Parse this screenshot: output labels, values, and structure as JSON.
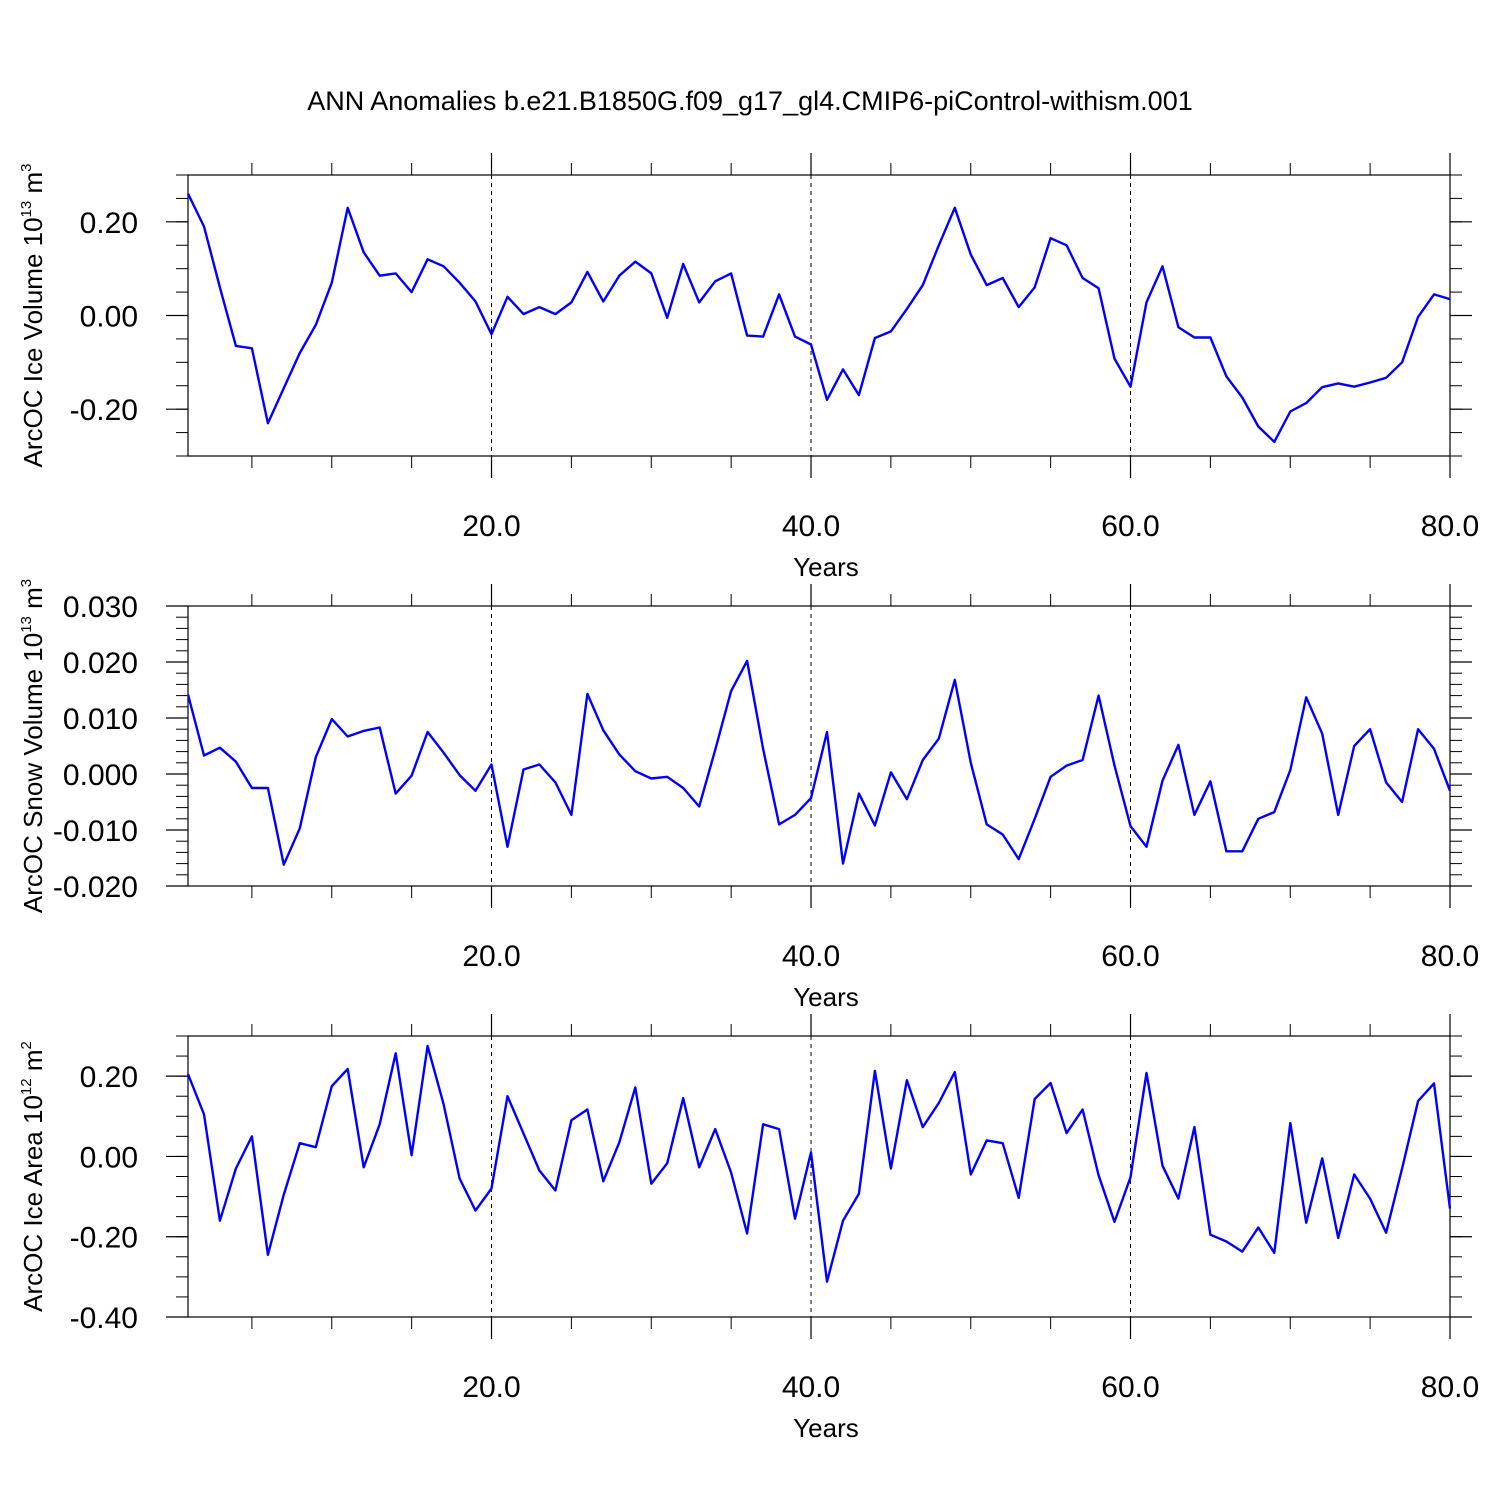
{
  "title": "ANN Anomalies b.e21.B1850G.f09_g17_gl4.CMIP6-piControl-withism.001",
  "colors": {
    "line": "#0000ff",
    "axis": "#000000",
    "grid": "#000000"
  },
  "chart_data": [
    {
      "type": "line",
      "xlabel": "Years",
      "ylabel": {
        "main": "ArcOC Ice Volume 10",
        "exp": "13",
        "unit": " m",
        "unit_exp": "3"
      },
      "xlim": [
        1,
        80
      ],
      "ylim": [
        -0.3,
        0.3
      ],
      "x_ticks": [
        20,
        40,
        60,
        80
      ],
      "x_tick_labels": [
        "20.0",
        "40.0",
        "60.0",
        "80.0"
      ],
      "y_ticks": [
        0.2,
        0.0,
        -0.2
      ],
      "y_tick_labels": [
        "0.20",
        "0.00",
        "-0.20"
      ],
      "y_minor_step": 0.05,
      "vgrid_x": [
        20,
        40,
        60
      ],
      "values": [
        0.26,
        0.19,
        0.06,
        -0.065,
        -0.07,
        -0.23,
        -0.155,
        -0.08,
        -0.02,
        0.07,
        0.23,
        0.135,
        0.085,
        0.09,
        0.05,
        0.12,
        0.105,
        0.07,
        0.03,
        -0.04,
        0.04,
        0.003,
        0.018,
        0.003,
        0.028,
        0.093,
        0.03,
        0.085,
        0.115,
        0.09,
        -0.005,
        0.11,
        0.028,
        0.073,
        0.09,
        -0.043,
        -0.045,
        0.045,
        -0.045,
        -0.062,
        -0.18,
        -0.115,
        -0.17,
        -0.048,
        -0.034,
        0.014,
        0.065,
        0.15,
        0.23,
        0.13,
        0.065,
        0.08,
        0.018,
        0.06,
        0.165,
        0.15,
        0.08,
        0.058,
        -0.092,
        -0.152,
        0.028,
        0.105,
        -0.025,
        -0.047,
        -0.047,
        -0.13,
        -0.175,
        -0.237,
        -0.27,
        -0.205,
        -0.187,
        -0.153,
        -0.145,
        -0.152,
        -0.143,
        -0.133,
        -0.1,
        -0.003,
        0.045,
        0.035
      ]
    },
    {
      "type": "line",
      "xlabel": "Years",
      "ylabel": {
        "main": "ArcOC Snow Volume 10",
        "exp": "13",
        "unit": " m",
        "unit_exp": "3"
      },
      "xlim": [
        1,
        80
      ],
      "ylim": [
        -0.02,
        0.03
      ],
      "x_ticks": [
        20,
        40,
        60,
        80
      ],
      "x_tick_labels": [
        "20.0",
        "40.0",
        "60.0",
        "80.0"
      ],
      "y_ticks": [
        0.03,
        0.02,
        0.01,
        0.0,
        -0.01,
        -0.02
      ],
      "y_tick_labels": [
        "0.030",
        "0.020",
        "0.010",
        "0.000",
        "-0.010",
        "-0.020"
      ],
      "y_minor_step": 0.002,
      "vgrid_x": [
        20,
        40,
        60
      ],
      "values": [
        0.0142,
        0.0033,
        0.0047,
        0.0022,
        -0.0025,
        -0.0025,
        -0.0162,
        -0.0097,
        0.003,
        0.0098,
        0.0067,
        0.0077,
        0.0083,
        -0.0035,
        -0.0003,
        0.0075,
        0.0038,
        -0.0002,
        -0.003,
        0.0017,
        -0.013,
        0.0008,
        0.0017,
        -0.0015,
        -0.0073,
        0.0143,
        0.0078,
        0.0035,
        0.0005,
        -0.0008,
        -0.0005,
        -0.0025,
        -0.0058,
        0.0043,
        0.0148,
        0.0202,
        0.0045,
        -0.009,
        -0.0073,
        -0.0043,
        0.0075,
        -0.016,
        -0.0035,
        -0.0092,
        0.0003,
        -0.0045,
        0.0025,
        0.0063,
        0.0168,
        0.002,
        -0.009,
        -0.0108,
        -0.0152,
        -0.008,
        -0.0005,
        0.0015,
        0.0025,
        0.014,
        0.0015,
        -0.0093,
        -0.013,
        -0.0012,
        0.0052,
        -0.0073,
        -0.0013,
        -0.0138,
        -0.0138,
        -0.008,
        -0.0068,
        0.0007,
        0.0137,
        0.0072,
        -0.0073,
        0.005,
        0.008,
        -0.0015,
        -0.005,
        0.008,
        0.0045,
        -0.003
      ]
    },
    {
      "type": "line",
      "xlabel": "Years",
      "ylabel": {
        "main": "ArcOC Ice Area 10",
        "exp": "12",
        "unit": " m",
        "unit_exp": "2"
      },
      "xlim": [
        1,
        80
      ],
      "ylim": [
        -0.4,
        0.3
      ],
      "x_ticks": [
        20,
        40,
        60,
        80
      ],
      "x_tick_labels": [
        "20.0",
        "40.0",
        "60.0",
        "80.0"
      ],
      "y_ticks": [
        0.2,
        0.0,
        -0.2,
        -0.4
      ],
      "y_tick_labels": [
        "0.20",
        "0.00",
        "-0.20",
        "-0.40"
      ],
      "y_minor_step": 0.05,
      "vgrid_x": [
        20,
        40,
        60
      ],
      "values": [
        0.205,
        0.105,
        -0.16,
        -0.03,
        0.05,
        -0.245,
        -0.095,
        0.033,
        0.023,
        0.175,
        0.218,
        -0.027,
        0.08,
        0.257,
        0.003,
        0.275,
        0.13,
        -0.055,
        -0.135,
        -0.08,
        0.15,
        0.057,
        -0.035,
        -0.085,
        0.09,
        0.117,
        -0.062,
        0.035,
        0.172,
        -0.068,
        -0.017,
        0.145,
        -0.027,
        0.068,
        -0.04,
        -0.192,
        0.08,
        0.068,
        -0.155,
        0.01,
        -0.312,
        -0.16,
        -0.093,
        0.213,
        -0.03,
        0.19,
        0.073,
        0.133,
        0.21,
        -0.045,
        0.04,
        0.033,
        -0.103,
        0.143,
        0.183,
        0.058,
        0.117,
        -0.047,
        -0.163,
        -0.052,
        0.208,
        -0.023,
        -0.105,
        0.073,
        -0.195,
        -0.212,
        -0.237,
        -0.177,
        -0.24,
        0.083,
        -0.165,
        -0.005,
        -0.203,
        -0.045,
        -0.105,
        -0.19,
        -0.03,
        0.138,
        0.182,
        -0.13
      ]
    }
  ]
}
